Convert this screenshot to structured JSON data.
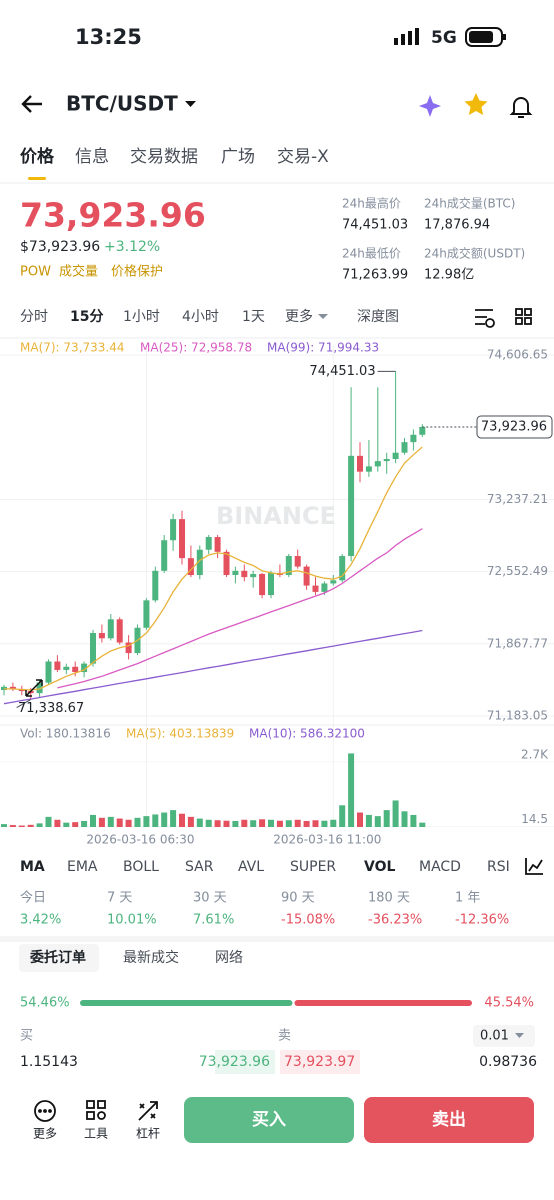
{
  "status_bar": {
    "time": "13:25",
    "network": "5G"
  },
  "header": {
    "pair": "BTC/USDT"
  },
  "tabs": [
    "价格",
    "信息",
    "交易数据",
    "广场",
    "交易-X"
  ],
  "ticker": {
    "price": "73,923.96",
    "price_usd": "$73,923.96",
    "change": "+3.12%",
    "tags": [
      "POW",
      "成交量",
      "价格保护"
    ],
    "stats": [
      {
        "label": "24h最高价",
        "value": "74,451.03"
      },
      {
        "label": "24h成交量(BTC)",
        "value": "17,876.94"
      },
      {
        "label": "24h最低价",
        "value": "71,263.99"
      },
      {
        "label": "24h成交额(USDT)",
        "value": "12.98亿"
      }
    ]
  },
  "intervals": [
    "分时",
    "15分",
    "1小时",
    "4小时",
    "1天",
    "更多",
    "深度图"
  ],
  "chart_data": {
    "type": "candlestick",
    "watermark": "BINANCE",
    "categories": [
      null,
      null,
      null,
      null,
      null,
      null,
      null,
      null,
      null,
      null,
      null,
      null,
      null,
      null,
      null,
      null,
      "2026-03-16 06:30",
      null,
      null,
      null,
      null,
      null,
      null,
      null,
      null,
      null,
      null,
      null,
      null,
      null,
      null,
      null,
      null,
      null,
      null,
      null,
      null,
      "2026-03-16 11:00",
      null,
      null,
      null,
      null,
      null,
      null,
      null,
      null,
      null,
      null
    ],
    "open": [
      71430,
      71460,
      71440,
      71420,
      71400,
      71500,
      71700,
      71620,
      71650,
      71600,
      71680,
      71970,
      71920,
      72100,
      71880,
      71780,
      72020,
      72280,
      72560,
      72850,
      73050,
      72680,
      72520,
      72760,
      72880,
      72740,
      72520,
      72560,
      72500,
      72530,
      72330,
      72540,
      72520,
      72700,
      72600,
      72420,
      72360,
      72440,
      72470,
      72700,
      73650,
      73500,
      73550,
      73600,
      73620,
      73680,
      73780,
      73850
    ],
    "high": [
      71480,
      71500,
      71470,
      71450,
      71520,
      71720,
      71760,
      71680,
      71700,
      71700,
      72000,
      72050,
      72150,
      72120,
      71950,
      72050,
      72300,
      72600,
      72900,
      73100,
      73130,
      72800,
      72800,
      72900,
      72900,
      72760,
      72600,
      72620,
      72560,
      72540,
      72560,
      72620,
      72720,
      72760,
      72620,
      72500,
      72460,
      72520,
      72720,
      74300,
      73780,
      73800,
      74300,
      73680,
      74451.03,
      73820,
      73900,
      73950
    ],
    "low": [
      71380,
      71420,
      71380,
      71338.67,
      71360,
      71480,
      71600,
      71580,
      71560,
      71550,
      71650,
      71880,
      71900,
      71860,
      71720,
      71760,
      72000,
      72260,
      72540,
      72750,
      72620,
      72500,
      72480,
      72720,
      72680,
      72500,
      72440,
      72460,
      72400,
      72300,
      72300,
      72500,
      72500,
      72580,
      72380,
      72330,
      72330,
      72420,
      72450,
      72650,
      73400,
      73450,
      73500,
      73480,
      73580,
      73660,
      73700,
      73830
    ],
    "close": [
      71460,
      71440,
      71420,
      71400,
      71500,
      71700,
      71620,
      71650,
      71600,
      71680,
      71970,
      71920,
      72100,
      71880,
      71780,
      72020,
      72280,
      72560,
      72850,
      73050,
      72680,
      72520,
      72760,
      72880,
      72740,
      72520,
      72560,
      72500,
      72530,
      72330,
      72540,
      72520,
      72700,
      72600,
      72420,
      72360,
      72440,
      72470,
      72700,
      73650,
      73500,
      73550,
      73600,
      73620,
      73680,
      73780,
      73850,
      73923.96
    ],
    "up_color": "#4cb47e",
    "down_color": "#e4505e",
    "series": [
      {
        "name": "MA(7): 73,733.44",
        "color": "#e8b339",
        "values": [
          71440,
          71440,
          71435,
          71430,
          71440,
          71480,
          71520,
          71560,
          71590,
          71620,
          71690,
          71750,
          71800,
          71830,
          71850,
          71900,
          71970,
          72080,
          72210,
          72360,
          72480,
          72570,
          72660,
          72710,
          72730,
          72720,
          72680,
          72640,
          72610,
          72560,
          72540,
          72530,
          72550,
          72560,
          72540,
          72510,
          72490,
          72480,
          72510,
          72620,
          72770,
          72950,
          73120,
          73300,
          73450,
          73580,
          73660,
          73733.44
        ]
      },
      {
        "name": "MA(25): 72,958.78",
        "color": "#d95ac2",
        "values": [
          null,
          null,
          null,
          null,
          null,
          null,
          71450,
          71470,
          71490,
          71510,
          71535,
          71560,
          71590,
          71620,
          71650,
          71680,
          71715,
          71750,
          71785,
          71820,
          71855,
          71890,
          71925,
          71960,
          71990,
          72020,
          72050,
          72080,
          72110,
          72140,
          72170,
          72200,
          72230,
          72260,
          72290,
          72320,
          72350,
          72390,
          72440,
          72500,
          72560,
          72620,
          72680,
          72730,
          72800,
          72860,
          72910,
          72958.78
        ]
      },
      {
        "name": "MA(99): 71,994.33",
        "color": "#8a5ccf",
        "values": [
          71300,
          71315,
          71330,
          71344,
          71359,
          71374,
          71389,
          71403,
          71418,
          71433,
          71448,
          71462,
          71477,
          71492,
          71507,
          71522,
          71536,
          71551,
          71566,
          71581,
          71595,
          71610,
          71625,
          71640,
          71654,
          71669,
          71684,
          71699,
          71714,
          71728,
          71743,
          71758,
          71773,
          71787,
          71802,
          71817,
          71832,
          71846,
          71861,
          71876,
          71891,
          71906,
          71920,
          71935,
          71950,
          71965,
          71979,
          71994.33
        ]
      }
    ],
    "ylim": [
      71098,
      74701
    ],
    "yticks": [
      {
        "value": 71183.05,
        "label": "71,183.05"
      },
      {
        "value": 71867.77,
        "label": "71,867.77"
      },
      {
        "value": 72552.49,
        "label": "72,552.49"
      },
      {
        "value": 73237.21,
        "label": "73,237.21"
      },
      {
        "value": 74606.65,
        "label": "74,606.65"
      }
    ],
    "grid": true,
    "annotations": {
      "high": {
        "value": 74451.03,
        "label": "74,451.03"
      },
      "low": {
        "value": 71338.67,
        "label": "71,338.67"
      },
      "last": {
        "value": 73923.96,
        "label": "73,923.96"
      }
    },
    "volume": {
      "label": "Vol: 180.13816",
      "legend": [
        {
          "name": "MA(5): 403.13839",
          "color": "#e8b339"
        },
        {
          "name": "MA(10): 586.32100",
          "color": "#8a5ccf"
        }
      ],
      "values": [
        120,
        80,
        60,
        90,
        150,
        420,
        300,
        180,
        200,
        250,
        500,
        380,
        420,
        350,
        300,
        380,
        450,
        520,
        600,
        700,
        550,
        420,
        350,
        300,
        280,
        260,
        250,
        300,
        280,
        320,
        300,
        260,
        280,
        300,
        250,
        280,
        260,
        300,
        900,
        3050,
        600,
        500,
        450,
        700,
        1100,
        650,
        500,
        180.13816
      ],
      "ylim": [
        0,
        3400
      ],
      "yticks": [
        14.5,
        {
          "value": 2700,
          "label": "2.7K"
        }
      ]
    }
  },
  "indicators": [
    "MA",
    "EMA",
    "BOLL",
    "SAR",
    "AVL",
    "SUPER",
    "VOL",
    "MACD",
    "RSI"
  ],
  "performance": [
    {
      "label": "今日",
      "value": "3.42%"
    },
    {
      "label": "7 天",
      "value": "10.01%"
    },
    {
      "label": "30 天",
      "value": "7.61%"
    },
    {
      "label": "90 天",
      "value": "-15.08%"
    },
    {
      "label": "180 天",
      "value": "-36.23%"
    },
    {
      "label": "1 年",
      "value": "-12.36%"
    }
  ],
  "order_tabs": [
    "委托订单",
    "最新成交",
    "网络"
  ],
  "order_ratio": {
    "buy": {
      "value": 54.46,
      "label": "54.46%"
    },
    "sell": {
      "value": 45.54,
      "label": "45.54%"
    }
  },
  "order_book": {
    "buy_header": "买",
    "sell_header": "卖",
    "precision": "0.01",
    "rows": [
      [
        "1.15143",
        "73,923.96",
        "73,923.97",
        "0.98736"
      ]
    ]
  },
  "bottom_bar": {
    "items": [
      "更多",
      "工具",
      "杠杆"
    ],
    "buy": "买入",
    "sell": "卖出"
  }
}
